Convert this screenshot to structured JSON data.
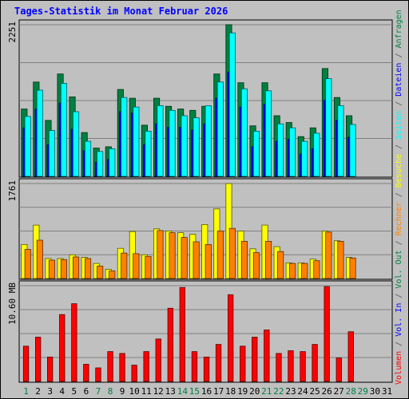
{
  "title": "Tages-Statistik im Monat Februar 2026",
  "days": [
    "1",
    "2",
    "3",
    "4",
    "5",
    "6",
    "7",
    "8",
    "9",
    "10",
    "11",
    "12",
    "13",
    "14",
    "15",
    "16",
    "17",
    "18",
    "19",
    "20",
    "21",
    "22",
    "23",
    "24",
    "25",
    "26",
    "27",
    "28",
    "29",
    "30",
    "31"
  ],
  "weekend_days": [
    "1",
    "7",
    "8",
    "14",
    "15",
    "21",
    "22",
    "28",
    "29"
  ],
  "right_legend": [
    {
      "text": "Volumen",
      "color": "#ff0000"
    },
    {
      "text": " / ",
      "color": "#555555"
    },
    {
      "text": "Vol. In",
      "color": "#0000ff"
    },
    {
      "text": " / ",
      "color": "#555555"
    },
    {
      "text": "Vol. Out",
      "color": "#008040"
    },
    {
      "text": " / ",
      "color": "#555555"
    },
    {
      "text": "Rechner",
      "color": "#ff8000"
    },
    {
      "text": " / ",
      "color": "#555555"
    },
    {
      "text": "Besuche",
      "color": "#ffff00"
    },
    {
      "text": " / ",
      "color": "#555555"
    },
    {
      "text": "Seiten",
      "color": "#00ffff"
    },
    {
      "text": " / ",
      "color": "#555555"
    },
    {
      "text": "Dateien",
      "color": "#0000ff"
    },
    {
      "text": " / ",
      "color": "#555555"
    },
    {
      "text": "Anfragen",
      "color": "#008040"
    }
  ],
  "colors": {
    "title": "#0000ff",
    "weekend_label": "#008040",
    "weekday_label": "#000000",
    "plot_bg": "#c0c0c0",
    "anfragen": "#008040",
    "dateien": "#0000ff",
    "seiten": "#00ffff",
    "besuche": "#ffff00",
    "rechner": "#ff8000",
    "volumen": "#ff0000"
  },
  "chart_data": [
    {
      "type": "bar",
      "panel": "requests",
      "y_max_label": "2251",
      "ylim": [
        0,
        2251
      ],
      "categories": [
        "1",
        "2",
        "3",
        "4",
        "5",
        "6",
        "7",
        "8",
        "9",
        "10",
        "11",
        "12",
        "13",
        "14",
        "15",
        "16",
        "17",
        "18",
        "19",
        "20",
        "21",
        "22",
        "23",
        "24",
        "25",
        "26",
        "27",
        "28",
        "29",
        "30",
        "31"
      ],
      "series": [
        {
          "name": "Anfragen",
          "values": [
            1000,
            1400,
            830,
            1520,
            1180,
            650,
            420,
            440,
            1290,
            1160,
            760,
            1160,
            1040,
            1000,
            980,
            1040,
            1520,
            2251,
            1390,
            750,
            1390,
            900,
            800,
            590,
            720,
            1600,
            1170,
            900,
            0,
            0,
            0
          ]
        },
        {
          "name": "Dateien",
          "values": [
            720,
            1000,
            470,
            1090,
            700,
            380,
            210,
            250,
            960,
            940,
            470,
            780,
            730,
            730,
            690,
            780,
            1160,
            1550,
            1030,
            440,
            1070,
            520,
            550,
            330,
            410,
            1130,
            830,
            580,
            0,
            0,
            0
          ]
        },
        {
          "name": "Seiten",
          "values": [
            890,
            1280,
            680,
            1380,
            960,
            520,
            370,
            410,
            1170,
            1030,
            670,
            1050,
            980,
            900,
            870,
            1050,
            1400,
            2130,
            1300,
            670,
            1270,
            780,
            720,
            520,
            640,
            1450,
            1050,
            770,
            0,
            0,
            0
          ]
        }
      ]
    },
    {
      "type": "bar",
      "panel": "visits",
      "y_max_label": "1761",
      "ylim": [
        0,
        1761
      ],
      "categories": [
        "1",
        "2",
        "3",
        "4",
        "5",
        "6",
        "7",
        "8",
        "9",
        "10",
        "11",
        "12",
        "13",
        "14",
        "15",
        "16",
        "17",
        "18",
        "19",
        "20",
        "21",
        "22",
        "23",
        "24",
        "25",
        "26",
        "27",
        "28",
        "29",
        "30",
        "31"
      ],
      "series": [
        {
          "name": "Besuche",
          "values": [
            630,
            990,
            370,
            370,
            440,
            390,
            280,
            170,
            560,
            870,
            440,
            920,
            880,
            850,
            820,
            1000,
            1290,
            1761,
            880,
            550,
            990,
            590,
            290,
            290,
            360,
            880,
            700,
            390,
            0,
            0,
            0
          ]
        },
        {
          "name": "Rechner",
          "values": [
            540,
            710,
            340,
            350,
            400,
            370,
            230,
            140,
            470,
            460,
            410,
            890,
            850,
            760,
            680,
            630,
            880,
            930,
            690,
            480,
            690,
            500,
            280,
            280,
            330,
            860,
            690,
            380,
            0,
            0,
            0
          ]
        }
      ]
    },
    {
      "type": "bar",
      "panel": "volume",
      "y_max_label": "10.60 MB",
      "ylim": [
        0,
        10.6
      ],
      "categories": [
        "1",
        "2",
        "3",
        "4",
        "5",
        "6",
        "7",
        "8",
        "9",
        "10",
        "11",
        "12",
        "13",
        "14",
        "15",
        "16",
        "17",
        "18",
        "19",
        "20",
        "21",
        "22",
        "23",
        "24",
        "25",
        "26",
        "27",
        "28",
        "29",
        "30",
        "31"
      ],
      "series": [
        {
          "name": "Volumen",
          "values": [
            3.9,
            4.9,
            2.7,
            7.4,
            8.6,
            1.9,
            1.5,
            3.3,
            3.1,
            1.8,
            3.3,
            4.7,
            8.1,
            10.4,
            3.3,
            2.7,
            4.1,
            9.6,
            3.9,
            4.9,
            5.7,
            3.1,
            3.4,
            3.3,
            4.1,
            10.5,
            2.6,
            5.5,
            0,
            0,
            0
          ]
        }
      ]
    }
  ]
}
